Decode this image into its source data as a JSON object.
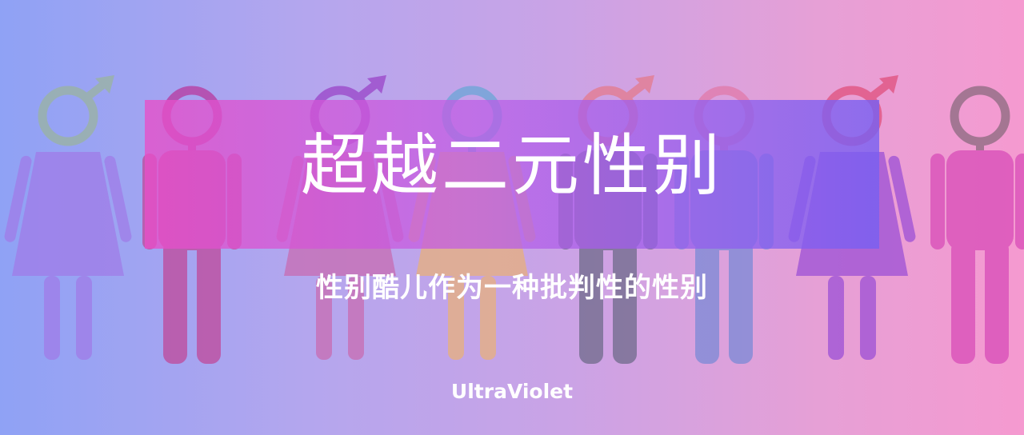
{
  "banner": {
    "title": "超越二元性别",
    "subtitle": "性别酷儿作为一种批判性的性别",
    "brand": "UltraViolet"
  },
  "figures": [
    {
      "figure": "woman-icon",
      "head_symbol": "male-symbol",
      "body_color": "#a07ce8",
      "symbol_color": "#9ab4a0"
    },
    {
      "figure": "man-icon",
      "head_symbol": "female-symbol",
      "body_color": "#c0489a",
      "symbol_color": "#b8389e"
    },
    {
      "figure": "woman-icon",
      "head_symbol": "male-symbol",
      "body_color": "#c86cb2",
      "symbol_color": "#9a44c8"
    },
    {
      "figure": "woman-icon",
      "head_symbol": "female-symbol",
      "body_color": "#e8b07c",
      "symbol_color": "#6aa6d6"
    },
    {
      "figure": "man-icon",
      "head_symbol": "male-symbol",
      "body_color": "#6e6a8a",
      "symbol_color": "#e47a8c"
    },
    {
      "figure": "man-icon",
      "head_symbol": "female-symbol",
      "body_color": "#7a8ad6",
      "symbol_color": "#e07aa8"
    },
    {
      "figure": "woman-icon",
      "head_symbol": "male-symbol",
      "body_color": "#9c50d6",
      "symbol_color": "#e0507c"
    },
    {
      "figure": "man-icon",
      "head_symbol": "female-symbol",
      "body_color": "#d84cb8",
      "symbol_color": "#8a6a7e"
    }
  ]
}
